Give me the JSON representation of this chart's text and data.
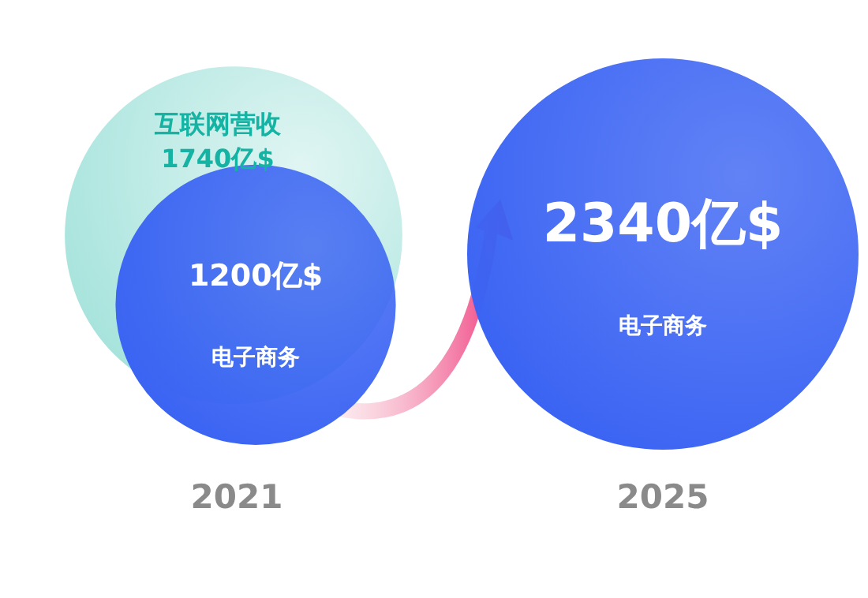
{
  "chart_data": {
    "type": "other",
    "categories": [
      "2021",
      "2025"
    ],
    "series": [
      {
        "name": "互联网营收",
        "color": "#a6e3dc",
        "values": [
          1740,
          null
        ],
        "value_labels": [
          "1740亿$",
          null
        ]
      },
      {
        "name": "电子商务",
        "color": "#3a63f3",
        "values": [
          1200,
          2340
        ],
        "value_labels": [
          "1200亿$",
          "2340亿$"
        ]
      }
    ]
  }
}
